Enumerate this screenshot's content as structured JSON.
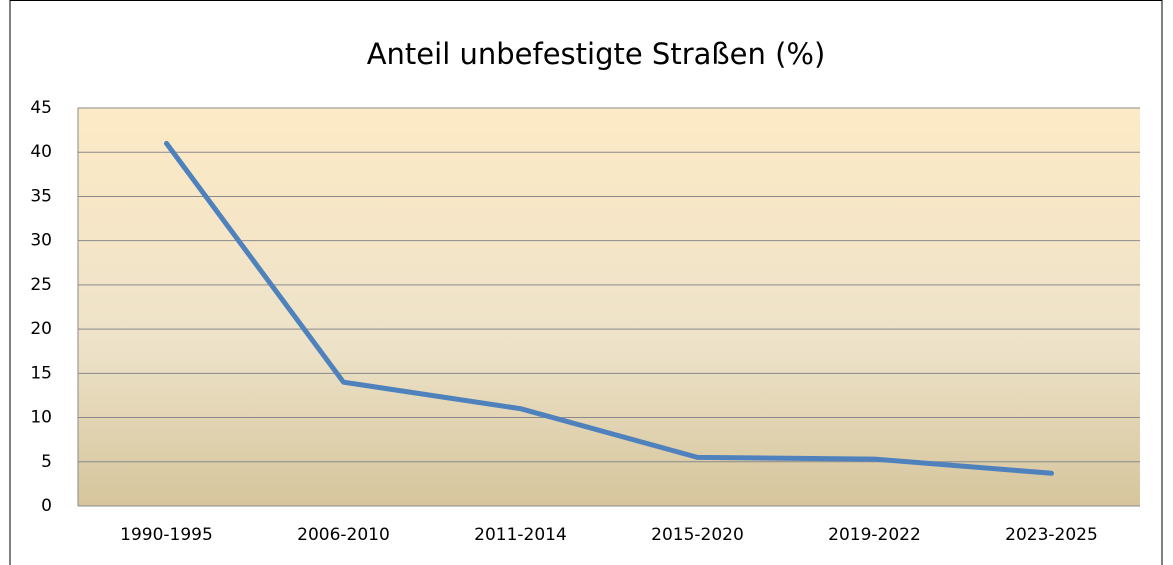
{
  "chart_data": {
    "type": "line",
    "title": "Anteil unbefestigte Straßen (%)",
    "categories": [
      "1990-1995",
      "2006-2010",
      "2011-2014",
      "2015-2020",
      "2019-2022",
      "2023-2025"
    ],
    "series": [
      {
        "name": "Anteil unbefestigte Straßen (%)",
        "color": "#4f81bd",
        "values": [
          41,
          14,
          11,
          5.5,
          5.3,
          3.7
        ]
      }
    ],
    "ylim": [
      0,
      45
    ],
    "yticks": [
      0,
      5,
      10,
      15,
      20,
      25,
      30,
      35,
      40,
      45
    ],
    "grid": true
  }
}
